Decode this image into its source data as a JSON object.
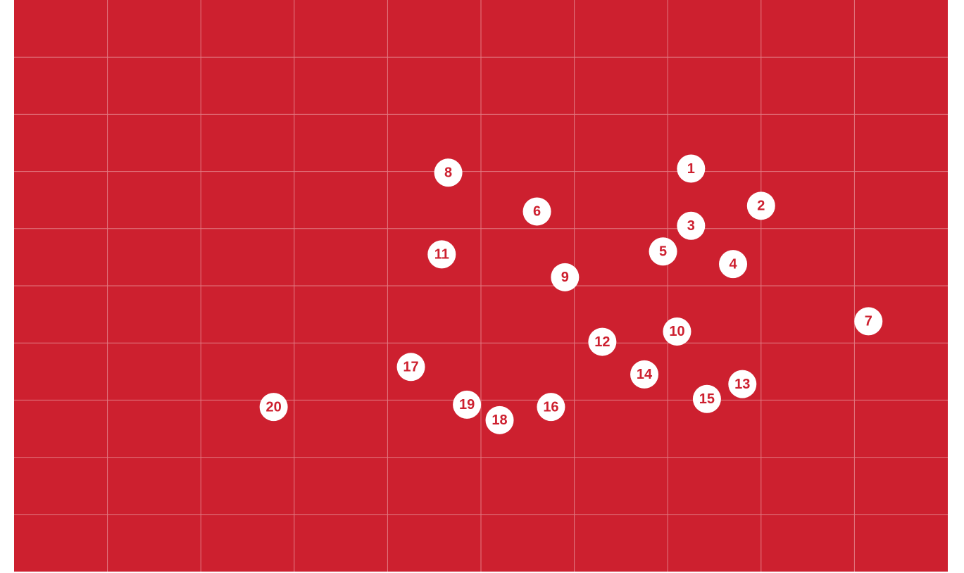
{
  "colors": {
    "background": "#cd202f",
    "grid_line": "#e27a82",
    "marker_fill": "#ffffff",
    "marker_text": "#cd202f"
  },
  "grid": {
    "columns": 10,
    "rows": 10
  },
  "markers": [
    {
      "label": "1",
      "col": 7.25,
      "row": 2.95
    },
    {
      "label": "2",
      "col": 8.0,
      "row": 3.6
    },
    {
      "label": "3",
      "col": 7.25,
      "row": 3.95
    },
    {
      "label": "4",
      "col": 7.7,
      "row": 4.62
    },
    {
      "label": "5",
      "col": 6.95,
      "row": 4.4
    },
    {
      "label": "6",
      "col": 5.6,
      "row": 3.7
    },
    {
      "label": "7",
      "col": 9.15,
      "row": 5.62
    },
    {
      "label": "8",
      "col": 4.65,
      "row": 3.02
    },
    {
      "label": "9",
      "col": 5.9,
      "row": 4.85
    },
    {
      "label": "10",
      "col": 7.1,
      "row": 5.8
    },
    {
      "label": "11",
      "col": 4.58,
      "row": 4.45
    },
    {
      "label": "12",
      "col": 6.3,
      "row": 5.98
    },
    {
      "label": "13",
      "col": 7.8,
      "row": 6.72
    },
    {
      "label": "14",
      "col": 6.75,
      "row": 6.55
    },
    {
      "label": "15",
      "col": 7.42,
      "row": 6.98
    },
    {
      "label": "16",
      "col": 5.75,
      "row": 7.12
    },
    {
      "label": "17",
      "col": 4.25,
      "row": 6.42
    },
    {
      "label": "18",
      "col": 5.2,
      "row": 7.35
    },
    {
      "label": "19",
      "col": 4.85,
      "row": 7.08
    },
    {
      "label": "20",
      "col": 2.78,
      "row": 7.12
    }
  ]
}
